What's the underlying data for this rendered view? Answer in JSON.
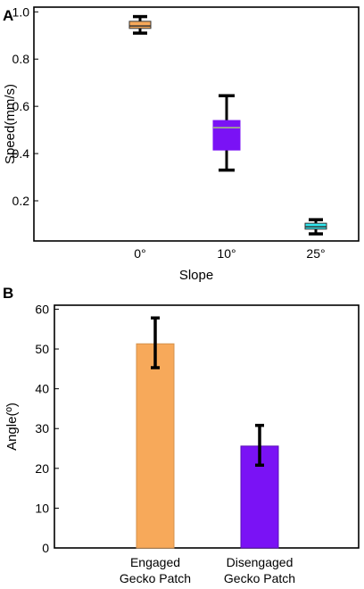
{
  "colors": {
    "orange": "#f7a95a",
    "purple": "#7a12f5",
    "cyan": "#2fe6ee",
    "median_line": "#999999",
    "whisker": "#000000",
    "axis": "#000000"
  },
  "chart_data": [
    {
      "panel": "A",
      "type": "box",
      "categories": [
        "0°",
        "10°",
        "25°"
      ],
      "series": [
        {
          "category": "0°",
          "min": 0.91,
          "q1": 0.93,
          "median": 0.94,
          "q3": 0.96,
          "max": 0.98,
          "color": "orange"
        },
        {
          "category": "10°",
          "min": 0.33,
          "q1": 0.415,
          "median": 0.51,
          "q3": 0.54,
          "max": 0.645,
          "color": "purple"
        },
        {
          "category": "25°",
          "min": 0.06,
          "q1": 0.08,
          "median": 0.09,
          "q3": 0.105,
          "max": 0.12,
          "color": "cyan"
        }
      ],
      "xlabel": "Slope",
      "ylabel": "Speed(mm/s)",
      "ylim": [
        0.03,
        1.02
      ],
      "yticks": [
        "0.2",
        "0.4",
        "0.6",
        "0.8",
        "1.0"
      ],
      "grid": false
    },
    {
      "panel": "B",
      "type": "bar",
      "categories": [
        [
          "Engaged",
          "Gecko Patch"
        ],
        [
          "Disengaged",
          "Gecko Patch"
        ]
      ],
      "values": [
        51.3,
        25.6
      ],
      "error_low": [
        45.3,
        20.8
      ],
      "error_high": [
        57.8,
        30.8
      ],
      "colors": [
        "orange",
        "purple"
      ],
      "xlabel": "",
      "ylabel": "Angle(º)",
      "ylim": [
        0,
        61
      ],
      "yticks": [
        "0",
        "10",
        "20",
        "30",
        "40",
        "50",
        "60"
      ],
      "grid": false
    }
  ]
}
